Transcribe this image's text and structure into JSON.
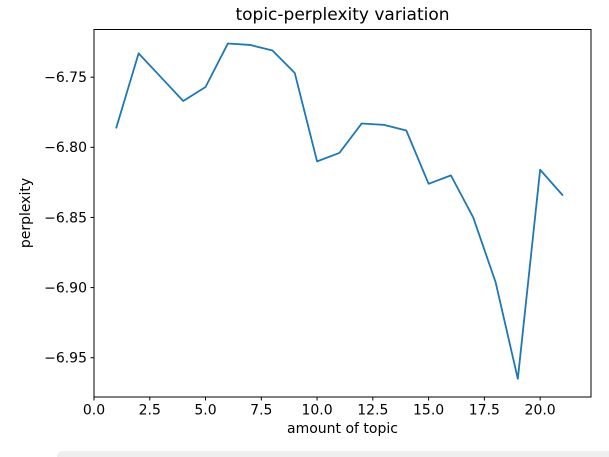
{
  "chart_data": {
    "type": "line",
    "title": "topic-perplexity variation",
    "xlabel": "amount of topic",
    "ylabel": "perplexity",
    "x": [
      1,
      2,
      3,
      4,
      5,
      6,
      7,
      8,
      9,
      10,
      11,
      12,
      13,
      14,
      15,
      16,
      17,
      18,
      19,
      20,
      21
    ],
    "series": [
      {
        "name": "perplexity",
        "color": "#1f77b4",
        "values": [
          -6.786,
          -6.733,
          -6.75,
          -6.767,
          -6.757,
          -6.726,
          -6.727,
          -6.731,
          -6.747,
          -6.81,
          -6.804,
          -6.783,
          -6.784,
          -6.788,
          -6.826,
          -6.82,
          -6.85,
          -6.896,
          -6.965,
          -6.816,
          -6.834
        ]
      }
    ],
    "xlim": [
      0,
      22.28
    ],
    "ylim": [
      -6.978,
      -6.716
    ],
    "xticks": [
      0,
      2.5,
      5,
      7.5,
      10,
      12.5,
      15,
      17.5,
      20
    ],
    "xtick_labels": [
      "0.0",
      "2.5",
      "5.0",
      "7.5",
      "10.0",
      "12.5",
      "15.0",
      "17.5",
      "20.0"
    ],
    "yticks": [
      -6.95,
      -6.9,
      -6.85,
      -6.8,
      -6.75
    ],
    "ytick_labels": [
      "−6.95",
      "−6.90",
      "−6.85",
      "−6.80",
      "−6.75"
    ],
    "grid": false,
    "legend_position": "none"
  },
  "colors": {
    "frame": "#000000",
    "background": "#ffffff",
    "tick_text": "#000000",
    "footer_strip": "#efefef"
  }
}
